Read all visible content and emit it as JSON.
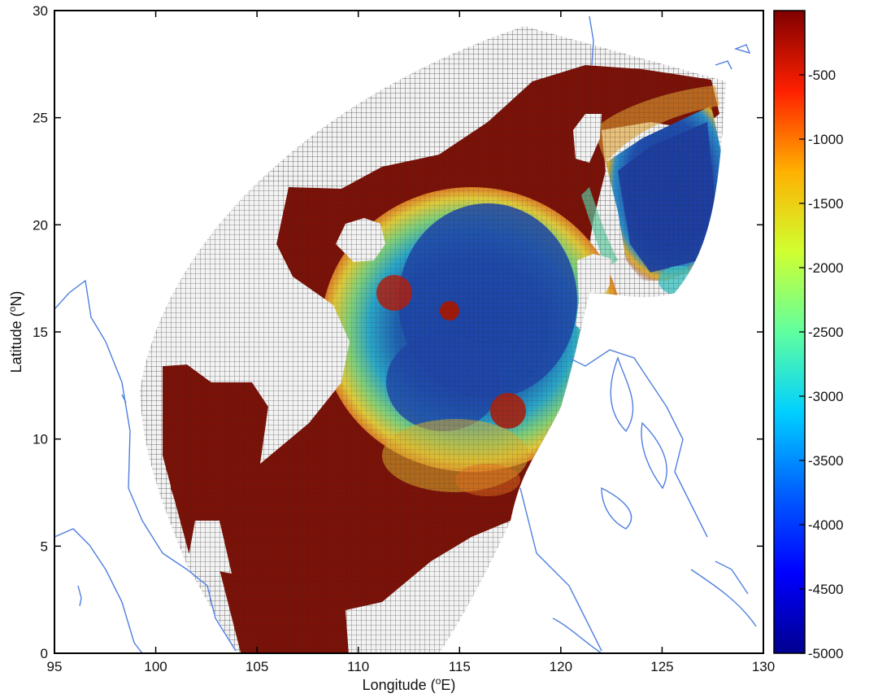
{
  "map": {
    "xaxis": {
      "title": "Longitude (",
      "unit_sup": "o",
      "unit_suffix": "E)",
      "range": [
        95,
        130
      ],
      "ticks": [
        "95",
        "100",
        "105",
        "110",
        "115",
        "120",
        "125",
        "130"
      ]
    },
    "yaxis": {
      "title": "Latitude (",
      "unit_sup": "o",
      "unit_suffix": "N)",
      "range": [
        0,
        30
      ],
      "ticks": [
        "0",
        "5",
        "10",
        "15",
        "20",
        "25",
        "30"
      ]
    },
    "colorbar": {
      "range": [
        -5000,
        0
      ],
      "labels": [
        "-500",
        "-1000",
        "-1500",
        "-2000",
        "-2500",
        "-3000",
        "-3500",
        "-4000",
        "-4500",
        "-5000"
      ],
      "colormap": "jet",
      "colors": [
        "#00008f",
        "#0000ff",
        "#0080ff",
        "#00ffff",
        "#80ff80",
        "#ffff00",
        "#ff8000",
        "#ff0000",
        "#800000"
      ]
    },
    "colors": {
      "coastline": "#4f7fe0",
      "grid_line": "#222222",
      "land_grid_fill": "#f3f3f3",
      "shallow_fill": "#7a1208"
    }
  }
}
